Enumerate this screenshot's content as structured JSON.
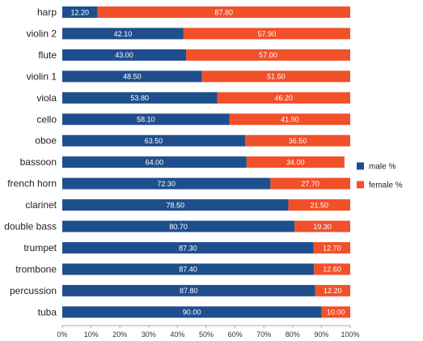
{
  "chart_data": {
    "type": "bar",
    "orientation": "horizontal",
    "stacked": true,
    "title": "",
    "xlabel": "",
    "ylabel": "",
    "xlim": [
      0,
      100
    ],
    "x_ticks": [
      "0%",
      "10%",
      "20%",
      "30%",
      "40%",
      "50%",
      "60%",
      "70%",
      "80%",
      "90%",
      "100%"
    ],
    "grid": false,
    "legend_position": "right",
    "categories": [
      "harp",
      "violin 2",
      "flute",
      "violin 1",
      "viola",
      "cello",
      "oboe",
      "bassoon",
      "french horn",
      "clarinet",
      "double bass",
      "trumpet",
      "trombone",
      "percussion",
      "tuba"
    ],
    "series": [
      {
        "name": "male %",
        "color": "#1f4e8c",
        "values": [
          12.2,
          42.1,
          43.0,
          48.5,
          53.8,
          58.1,
          63.5,
          64.0,
          72.3,
          78.5,
          80.7,
          87.3,
          87.4,
          87.8,
          90.0
        ],
        "labels": [
          "12.20",
          "42.10",
          "43.00",
          "48.50",
          "53.80",
          "58.10",
          "63.50",
          "64.00",
          "72.30",
          "78.50",
          "80.70",
          "87.30",
          "87.40",
          "87.80",
          "90.00"
        ]
      },
      {
        "name": "female %",
        "color": "#f0502a",
        "values": [
          87.8,
          57.9,
          57.0,
          51.5,
          46.2,
          41.9,
          36.5,
          34.0,
          27.7,
          21.5,
          19.3,
          12.7,
          12.6,
          12.2,
          10.0
        ],
        "labels": [
          "87.80",
          "57.90",
          "57.00",
          "51.50",
          "46.20",
          "41.90",
          "36.50",
          "34.00",
          "27.70",
          "21.50",
          "19.30",
          "12.70",
          "12.60",
          "12.20",
          "10.00"
        ]
      }
    ]
  }
}
